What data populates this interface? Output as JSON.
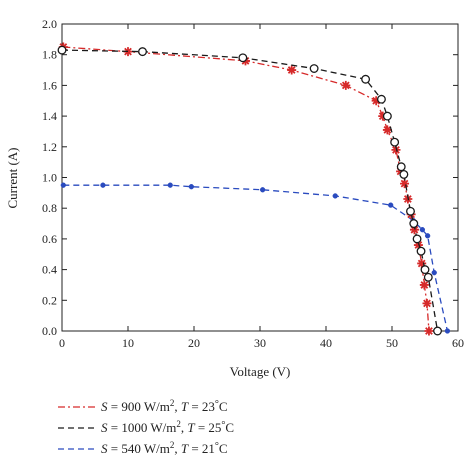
{
  "chart_data": {
    "type": "line",
    "title": "",
    "xlabel": "Voltage (V)",
    "ylabel": "Current (A)",
    "xlim": [
      0,
      60
    ],
    "ylim": [
      0,
      2.0
    ],
    "xticks": [
      0,
      10,
      20,
      30,
      40,
      50,
      60
    ],
    "yticks": [
      0.0,
      0.2,
      0.4,
      0.6,
      0.8,
      1.0,
      1.2,
      1.4,
      1.6,
      1.8,
      2.0
    ],
    "x_tick_labels": [
      "0",
      "10",
      "20",
      "30",
      "40",
      "50",
      "60"
    ],
    "y_tick_labels": [
      "0.0",
      "0.2",
      "0.4",
      "0.6",
      "0.8",
      "1.0",
      "1.2",
      "1.4",
      "1.6",
      "1.8",
      "2.0"
    ],
    "grid": false,
    "legend_position": "below",
    "series": [
      {
        "name": "S = 900 W/m², T = 23°C",
        "legend": {
          "s_value": "900",
          "w_unit": "W/m",
          "sup": "2",
          "t_value": "23",
          "deg": "°",
          "c_unit": "C"
        },
        "color": "#d62a2a",
        "line_style": "dashdot",
        "marker": "star",
        "x": [
          0.2,
          10.0,
          27.8,
          34.8,
          43.0,
          47.6,
          48.6,
          49.3,
          50.6,
          51.3,
          51.9,
          52.4,
          52.9,
          53.4,
          54.0,
          54.5,
          54.9,
          55.3,
          55.6
        ],
        "y": [
          1.85,
          1.82,
          1.76,
          1.7,
          1.6,
          1.5,
          1.4,
          1.31,
          1.18,
          1.04,
          0.96,
          0.86,
          0.76,
          0.66,
          0.56,
          0.44,
          0.3,
          0.18,
          0.0
        ]
      },
      {
        "name": "S = 1000 W/m², T = 25°C",
        "legend": {
          "s_value": "1000",
          "w_unit": "W/m",
          "sup": "2",
          "t_value": "25",
          "deg": "°",
          "c_unit": "C"
        },
        "color": "#1a1a1a",
        "line_style": "dashed",
        "marker": "open-circle",
        "x": [
          0.0,
          12.2,
          27.4,
          38.2,
          46.0,
          48.4,
          49.3,
          50.4,
          51.4,
          51.8,
          52.8,
          53.3,
          53.8,
          54.4,
          55.0,
          55.5,
          56.9
        ],
        "y": [
          1.83,
          1.82,
          1.78,
          1.71,
          1.64,
          1.51,
          1.4,
          1.23,
          1.07,
          1.02,
          0.78,
          0.7,
          0.6,
          0.52,
          0.4,
          0.35,
          0.0
        ]
      },
      {
        "name": "S = 540 W/m², T = 21°C",
        "legend": {
          "s_value": "540",
          "w_unit": "W/m",
          "sup": "2",
          "t_value": "21",
          "deg": "°",
          "c_unit": "C"
        },
        "color": "#2a4bbf",
        "line_style": "dashed",
        "marker": "filled-circle",
        "x": [
          0.2,
          6.2,
          16.4,
          19.6,
          30.4,
          41.4,
          49.8,
          53.2,
          54.6,
          55.4,
          56.4,
          58.4
        ],
        "y": [
          0.95,
          0.95,
          0.95,
          0.94,
          0.92,
          0.88,
          0.82,
          0.72,
          0.66,
          0.62,
          0.38,
          0.0
        ]
      }
    ]
  },
  "colors": {
    "axis": "#222222",
    "background": "#ffffff"
  }
}
